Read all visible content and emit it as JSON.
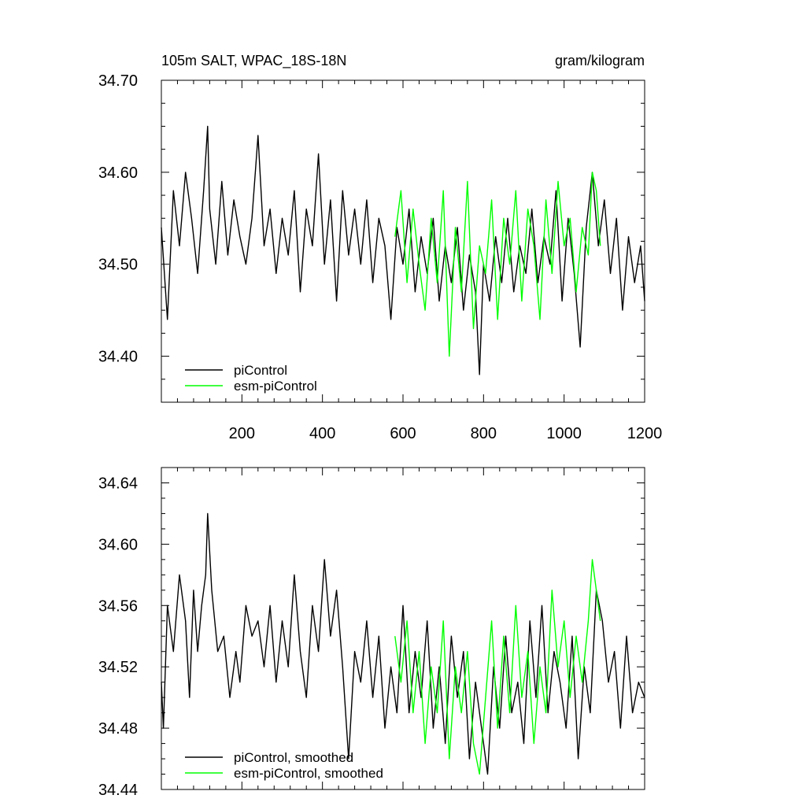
{
  "chart_data": [
    {
      "type": "line",
      "title_left": "105m SALT, WPAC_18S-18N",
      "title_right": "gram/kilogram",
      "xlabel": "",
      "ylabel": "",
      "xlim": [
        0,
        1200
      ],
      "ylim": [
        34.35,
        34.7
      ],
      "x_ticks": [
        200,
        400,
        600,
        800,
        1000,
        1200
      ],
      "x_tick_labels": [
        "200",
        "400",
        "600",
        "800",
        "1000",
        "1200"
      ],
      "y_ticks": [
        34.4,
        34.5,
        34.6,
        34.7
      ],
      "y_tick_labels": [
        "34.40",
        "34.50",
        "34.60",
        "34.70"
      ],
      "legend_position": "bottom-left",
      "series": [
        {
          "name": "piControl",
          "color": "#000000",
          "x": [
            0,
            15,
            30,
            45,
            60,
            75,
            90,
            105,
            115,
            120,
            135,
            150,
            165,
            180,
            195,
            210,
            225,
            240,
            255,
            270,
            285,
            300,
            315,
            330,
            345,
            360,
            375,
            390,
            405,
            420,
            435,
            450,
            465,
            480,
            495,
            510,
            525,
            540,
            555,
            570,
            585,
            600,
            615,
            630,
            645,
            660,
            675,
            690,
            705,
            720,
            735,
            750,
            765,
            780,
            790,
            800,
            815,
            830,
            845,
            860,
            875,
            890,
            905,
            920,
            935,
            950,
            965,
            980,
            995,
            1010,
            1025,
            1040,
            1055,
            1070,
            1085,
            1100,
            1115,
            1130,
            1145,
            1160,
            1175,
            1190,
            1200
          ],
          "y": [
            34.54,
            34.44,
            34.58,
            34.52,
            34.6,
            34.55,
            34.49,
            34.58,
            34.65,
            34.56,
            34.5,
            34.59,
            34.51,
            34.57,
            34.53,
            34.5,
            34.55,
            34.64,
            34.52,
            34.56,
            34.49,
            34.55,
            34.51,
            34.58,
            34.47,
            34.56,
            34.52,
            34.62,
            34.5,
            34.57,
            34.46,
            34.58,
            34.51,
            34.56,
            34.5,
            34.57,
            34.48,
            34.55,
            34.52,
            34.44,
            34.54,
            34.5,
            34.56,
            34.47,
            34.53,
            34.49,
            34.55,
            34.46,
            34.52,
            34.48,
            34.54,
            34.45,
            34.51,
            34.47,
            34.38,
            34.5,
            34.46,
            34.53,
            34.48,
            34.55,
            34.47,
            34.52,
            34.49,
            34.56,
            34.48,
            34.53,
            34.5,
            34.58,
            34.46,
            34.55,
            34.49,
            34.41,
            34.54,
            34.6,
            34.52,
            34.57,
            34.49,
            34.55,
            34.45,
            34.53,
            34.48,
            34.52,
            34.46
          ]
        },
        {
          "name": "esm-piControl",
          "color": "#00ff00",
          "x": [
            580,
            595,
            610,
            625,
            640,
            655,
            670,
            685,
            700,
            715,
            730,
            745,
            760,
            775,
            790,
            805,
            820,
            835,
            850,
            865,
            880,
            895,
            910,
            925,
            940,
            955,
            970,
            985,
            1000,
            1015,
            1030,
            1045,
            1060,
            1070,
            1080,
            1090
          ],
          "y": [
            34.53,
            34.58,
            34.48,
            34.56,
            34.5,
            34.45,
            34.55,
            34.48,
            34.58,
            34.4,
            34.54,
            34.47,
            34.59,
            34.43,
            34.52,
            34.49,
            34.57,
            34.44,
            34.55,
            34.5,
            34.58,
            34.46,
            34.56,
            34.52,
            34.44,
            34.57,
            34.49,
            34.59,
            34.52,
            34.55,
            34.47,
            34.54,
            34.51,
            34.6,
            34.58,
            34.52
          ]
        }
      ]
    },
    {
      "type": "line",
      "title": "",
      "xlabel": "",
      "ylabel": "",
      "xlim": [
        0,
        1200
      ],
      "ylim": [
        34.44,
        34.65
      ],
      "x_ticks": [
        200,
        400,
        600,
        800,
        1000,
        1200
      ],
      "y_ticks": [
        34.44,
        34.48,
        34.52,
        34.56,
        34.6,
        34.64
      ],
      "y_tick_labels": [
        "34.44",
        "34.48",
        "34.52",
        "34.56",
        "34.60",
        "34.64"
      ],
      "legend_position": "bottom-left",
      "series": [
        {
          "name": "piControl, smoothed",
          "color": "#000000",
          "x": [
            0,
            5,
            15,
            30,
            45,
            60,
            70,
            80,
            90,
            100,
            110,
            115,
            125,
            140,
            155,
            170,
            185,
            195,
            210,
            225,
            240,
            255,
            270,
            285,
            300,
            315,
            330,
            345,
            360,
            375,
            390,
            405,
            420,
            435,
            450,
            465,
            480,
            495,
            510,
            525,
            540,
            555,
            570,
            585,
            600,
            615,
            630,
            645,
            660,
            675,
            690,
            705,
            720,
            735,
            750,
            765,
            780,
            795,
            810,
            825,
            840,
            855,
            870,
            885,
            900,
            915,
            930,
            945,
            960,
            975,
            990,
            1005,
            1020,
            1035,
            1050,
            1065,
            1080,
            1095,
            1110,
            1125,
            1140,
            1155,
            1170,
            1185,
            1200
          ],
          "y": [
            34.51,
            34.48,
            34.56,
            34.53,
            34.58,
            34.55,
            34.5,
            34.57,
            34.53,
            34.56,
            34.58,
            34.62,
            34.57,
            34.53,
            34.54,
            34.5,
            34.53,
            34.51,
            34.56,
            34.54,
            34.55,
            34.52,
            34.56,
            34.51,
            34.55,
            34.52,
            34.58,
            34.53,
            34.5,
            34.56,
            34.53,
            34.59,
            34.54,
            34.57,
            34.52,
            34.46,
            34.53,
            34.51,
            34.55,
            34.5,
            34.54,
            34.48,
            34.52,
            34.49,
            34.56,
            34.49,
            34.53,
            34.5,
            34.55,
            34.48,
            34.52,
            34.47,
            34.54,
            34.5,
            34.53,
            34.46,
            34.51,
            34.48,
            34.45,
            34.52,
            34.48,
            34.54,
            34.49,
            34.51,
            34.47,
            34.55,
            34.5,
            34.56,
            34.49,
            34.53,
            34.51,
            34.48,
            34.54,
            34.46,
            34.52,
            34.49,
            34.57,
            34.55,
            34.51,
            34.53,
            34.48,
            34.54,
            34.49,
            34.51,
            34.5
          ]
        },
        {
          "name": "esm-piControl, smoothed",
          "color": "#00ff00",
          "x": [
            580,
            595,
            610,
            625,
            640,
            655,
            670,
            685,
            700,
            715,
            730,
            745,
            760,
            775,
            790,
            805,
            820,
            835,
            850,
            865,
            880,
            895,
            910,
            925,
            940,
            955,
            970,
            985,
            1000,
            1015,
            1030,
            1045,
            1060,
            1070,
            1080,
            1090
          ],
          "y": [
            34.54,
            34.51,
            34.55,
            34.49,
            34.53,
            34.47,
            34.52,
            34.49,
            34.55,
            34.46,
            34.52,
            34.49,
            34.53,
            34.47,
            34.45,
            34.5,
            34.55,
            34.48,
            34.54,
            34.49,
            34.56,
            34.5,
            34.53,
            34.47,
            34.52,
            34.49,
            34.57,
            34.52,
            34.55,
            34.5,
            34.54,
            34.51,
            34.55,
            34.59,
            34.57,
            34.55
          ]
        }
      ]
    }
  ]
}
